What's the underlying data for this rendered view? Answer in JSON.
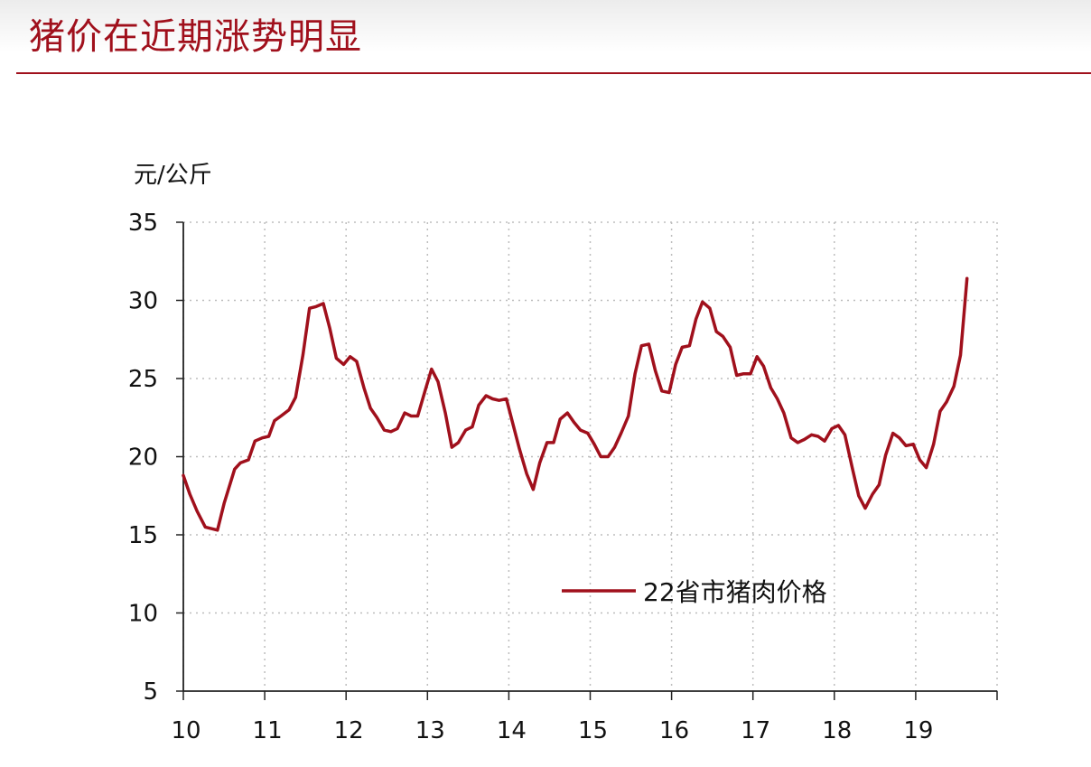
{
  "title": "猪价在近期涨势明显",
  "colors": {
    "accent": "#a0101c",
    "series": "#a0101c",
    "grid": "#bdbdbd"
  },
  "chart_data": {
    "type": "line",
    "unit_label": "元/公斤",
    "y_ticks": [
      "5",
      "10",
      "15",
      "20",
      "25",
      "30",
      "35"
    ],
    "x_ticks": [
      "10",
      "11",
      "12",
      "13",
      "14",
      "15",
      "16",
      "17",
      "18",
      "19"
    ],
    "ylim": [
      5,
      35
    ],
    "xlim": [
      2010,
      2020
    ],
    "grid": true,
    "legend_position": "bottom-right",
    "series": [
      {
        "name": "22省市猪肉价格",
        "x": [
          2010.0,
          2010.08,
          2010.17,
          2010.27,
          2010.42,
          2010.5,
          2010.63,
          2010.7,
          2010.8,
          2010.88,
          2010.97,
          2011.05,
          2011.12,
          2011.2,
          2011.3,
          2011.38,
          2011.47,
          2011.55,
          2011.63,
          2011.72,
          2011.8,
          2011.88,
          2011.97,
          2012.05,
          2012.13,
          2012.22,
          2012.3,
          2012.38,
          2012.47,
          2012.55,
          2012.63,
          2012.72,
          2012.8,
          2012.88,
          2012.97,
          2013.05,
          2013.13,
          2013.22,
          2013.3,
          2013.38,
          2013.47,
          2013.55,
          2013.63,
          2013.72,
          2013.8,
          2013.88,
          2013.97,
          2014.05,
          2014.13,
          2014.22,
          2014.3,
          2014.38,
          2014.47,
          2014.55,
          2014.63,
          2014.72,
          2014.8,
          2014.88,
          2014.97,
          2015.05,
          2015.13,
          2015.22,
          2015.3,
          2015.38,
          2015.47,
          2015.55,
          2015.63,
          2015.72,
          2015.8,
          2015.88,
          2015.97,
          2016.05,
          2016.13,
          2016.22,
          2016.3,
          2016.38,
          2016.47,
          2016.55,
          2016.63,
          2016.72,
          2016.8,
          2016.88,
          2016.97,
          2017.05,
          2017.13,
          2017.22,
          2017.3,
          2017.38,
          2017.47,
          2017.55,
          2017.63,
          2017.72,
          2017.8,
          2017.88,
          2017.97,
          2018.05,
          2018.13,
          2018.22,
          2018.3,
          2018.38,
          2018.47,
          2018.55,
          2018.63,
          2018.72,
          2018.8,
          2018.88,
          2018.97,
          2019.05,
          2019.13,
          2019.22,
          2019.3,
          2019.38,
          2019.47,
          2019.55,
          2019.63
        ],
        "values": [
          18.8,
          17.6,
          16.5,
          15.5,
          15.3,
          17.0,
          19.2,
          19.6,
          19.8,
          21.0,
          21.2,
          21.3,
          22.3,
          22.6,
          23.0,
          23.8,
          26.5,
          29.5,
          29.6,
          29.8,
          28.2,
          26.3,
          25.9,
          26.4,
          26.1,
          24.4,
          23.1,
          22.5,
          21.7,
          21.6,
          21.8,
          22.8,
          22.6,
          22.6,
          24.2,
          25.6,
          24.8,
          22.8,
          20.6,
          20.9,
          21.7,
          21.9,
          23.3,
          23.9,
          23.7,
          23.6,
          23.7,
          22.1,
          20.5,
          18.9,
          17.9,
          19.6,
          20.9,
          20.9,
          22.4,
          22.8,
          22.2,
          21.7,
          21.5,
          20.8,
          20.0,
          20.0,
          20.6,
          21.5,
          22.6,
          25.3,
          27.1,
          27.2,
          25.5,
          24.2,
          24.1,
          25.9,
          27.0,
          27.1,
          28.8,
          29.9,
          29.5,
          28.0,
          27.7,
          27.0,
          25.2,
          25.3,
          25.3,
          26.4,
          25.8,
          24.4,
          23.7,
          22.8,
          21.2,
          20.9,
          21.1,
          21.4,
          21.3,
          21.0,
          21.8,
          22.0,
          21.4,
          19.3,
          17.5,
          16.7,
          17.6,
          18.2,
          20.1,
          21.5,
          21.2,
          20.7,
          20.8,
          19.8,
          19.3,
          20.8,
          22.9,
          23.5,
          24.5,
          26.5,
          31.4
        ]
      }
    ]
  }
}
